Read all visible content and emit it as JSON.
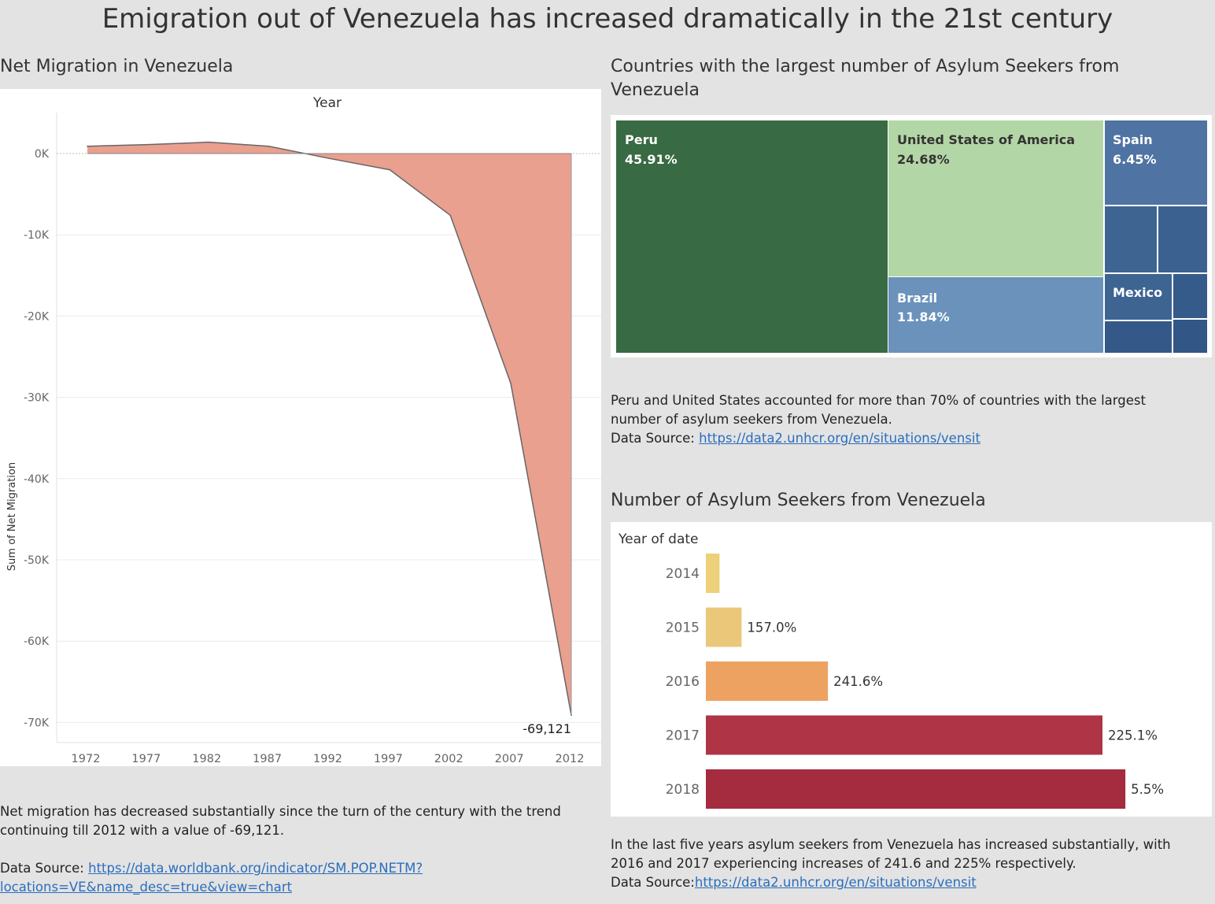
{
  "title": "Emigration out of Venezuela has increased dramatically in the 21st century",
  "net_migration": {
    "section_title": "Net Migration in Venezuela",
    "desc": "Net migration has decreased substantially since the turn of the century with the trend continuing till 2012 with a value of -69,121.",
    "source_label": "Data Source: ",
    "source_url_line1": "https://data.worldbank.org/indicator/SM.POP.NETM?",
    "source_url_line2": "locations=VE&name_desc=true&view=chart"
  },
  "treemap": {
    "section_title_line1": "Countries with the largest number of Asylum Seekers from",
    "section_title_line2": "Venezuela",
    "desc_line1": "Peru and United States accounted for more than 70% of countries with the largest",
    "desc_line2": "number of asylum seekers from Venezuela.",
    "source_label": "Data Source: ",
    "source_url": "https://data2.unhcr.org/en/situations/vensit"
  },
  "asylum": {
    "section_title": "Number of Asylum Seekers from Venezuela",
    "desc_line1": "In the last five years asylum seekers from Venezuela has increased substantially, with",
    "desc_line2": "2016 and 2017 experiencing increases of 241.6 and 225% respectively.",
    "source_label": "Data Source:",
    "source_url": "https://data2.unhcr.org/en/situations/vensit"
  },
  "chart_data": [
    {
      "type": "area",
      "xlabel": "Year",
      "ylabel": "Sum of Net Migration",
      "x": [
        1972,
        1977,
        1982,
        1987,
        1992,
        1997,
        2002,
        2007,
        2012
      ],
      "values": [
        900,
        1100,
        1400,
        900,
        -600,
        -2000,
        -7600,
        -28300,
        -69121
      ],
      "x_ticks": [
        "1972",
        "1977",
        "1982",
        "1987",
        "1992",
        "1997",
        "2002",
        "2007",
        "2012"
      ],
      "y_ticks": [
        {
          "v": 0,
          "label": "0K"
        },
        {
          "v": -10000,
          "label": "-10K"
        },
        {
          "v": -20000,
          "label": "-20K"
        },
        {
          "v": -30000,
          "label": "-30K"
        },
        {
          "v": -40000,
          "label": "-40K"
        },
        {
          "v": -50000,
          "label": "-50K"
        },
        {
          "v": -60000,
          "label": "-60K"
        },
        {
          "v": -70000,
          "label": "-70K"
        }
      ],
      "ylim": [
        -75000,
        5000
      ],
      "annotation": "-69,121",
      "colors": {
        "fill": "#e9a08f",
        "line": "#666666"
      }
    },
    {
      "type": "treemap",
      "title": "Countries with the largest number of Asylum Seekers from Venezuela",
      "items": [
        {
          "name": "Peru",
          "pct": "45.91%",
          "color": "#386a43"
        },
        {
          "name": "United States of America",
          "pct": "24.68%",
          "color": "#b3d6a6"
        },
        {
          "name": "Brazil",
          "pct": "11.84%",
          "color": "#6a92bb"
        },
        {
          "name": "Spain",
          "pct": "6.45%",
          "color": "#4f73a2"
        },
        {
          "name": "Mexico",
          "pct": "",
          "color": "#3e6492"
        }
      ]
    },
    {
      "type": "bar",
      "orientation": "horizontal",
      "ylabel": "Year of date",
      "categories": [
        "2014",
        "2015",
        "2016",
        "2017",
        "2018"
      ],
      "relative_values": [
        0.031,
        0.081,
        0.277,
        0.9,
        0.952
      ],
      "labels": [
        "",
        "157.0%",
        "241.6%",
        "225.1%",
        "5.5%"
      ],
      "colors": [
        "#ecd07a",
        "#ebc77a",
        "#eda262",
        "#ae3446",
        "#a52b3f"
      ]
    }
  ]
}
